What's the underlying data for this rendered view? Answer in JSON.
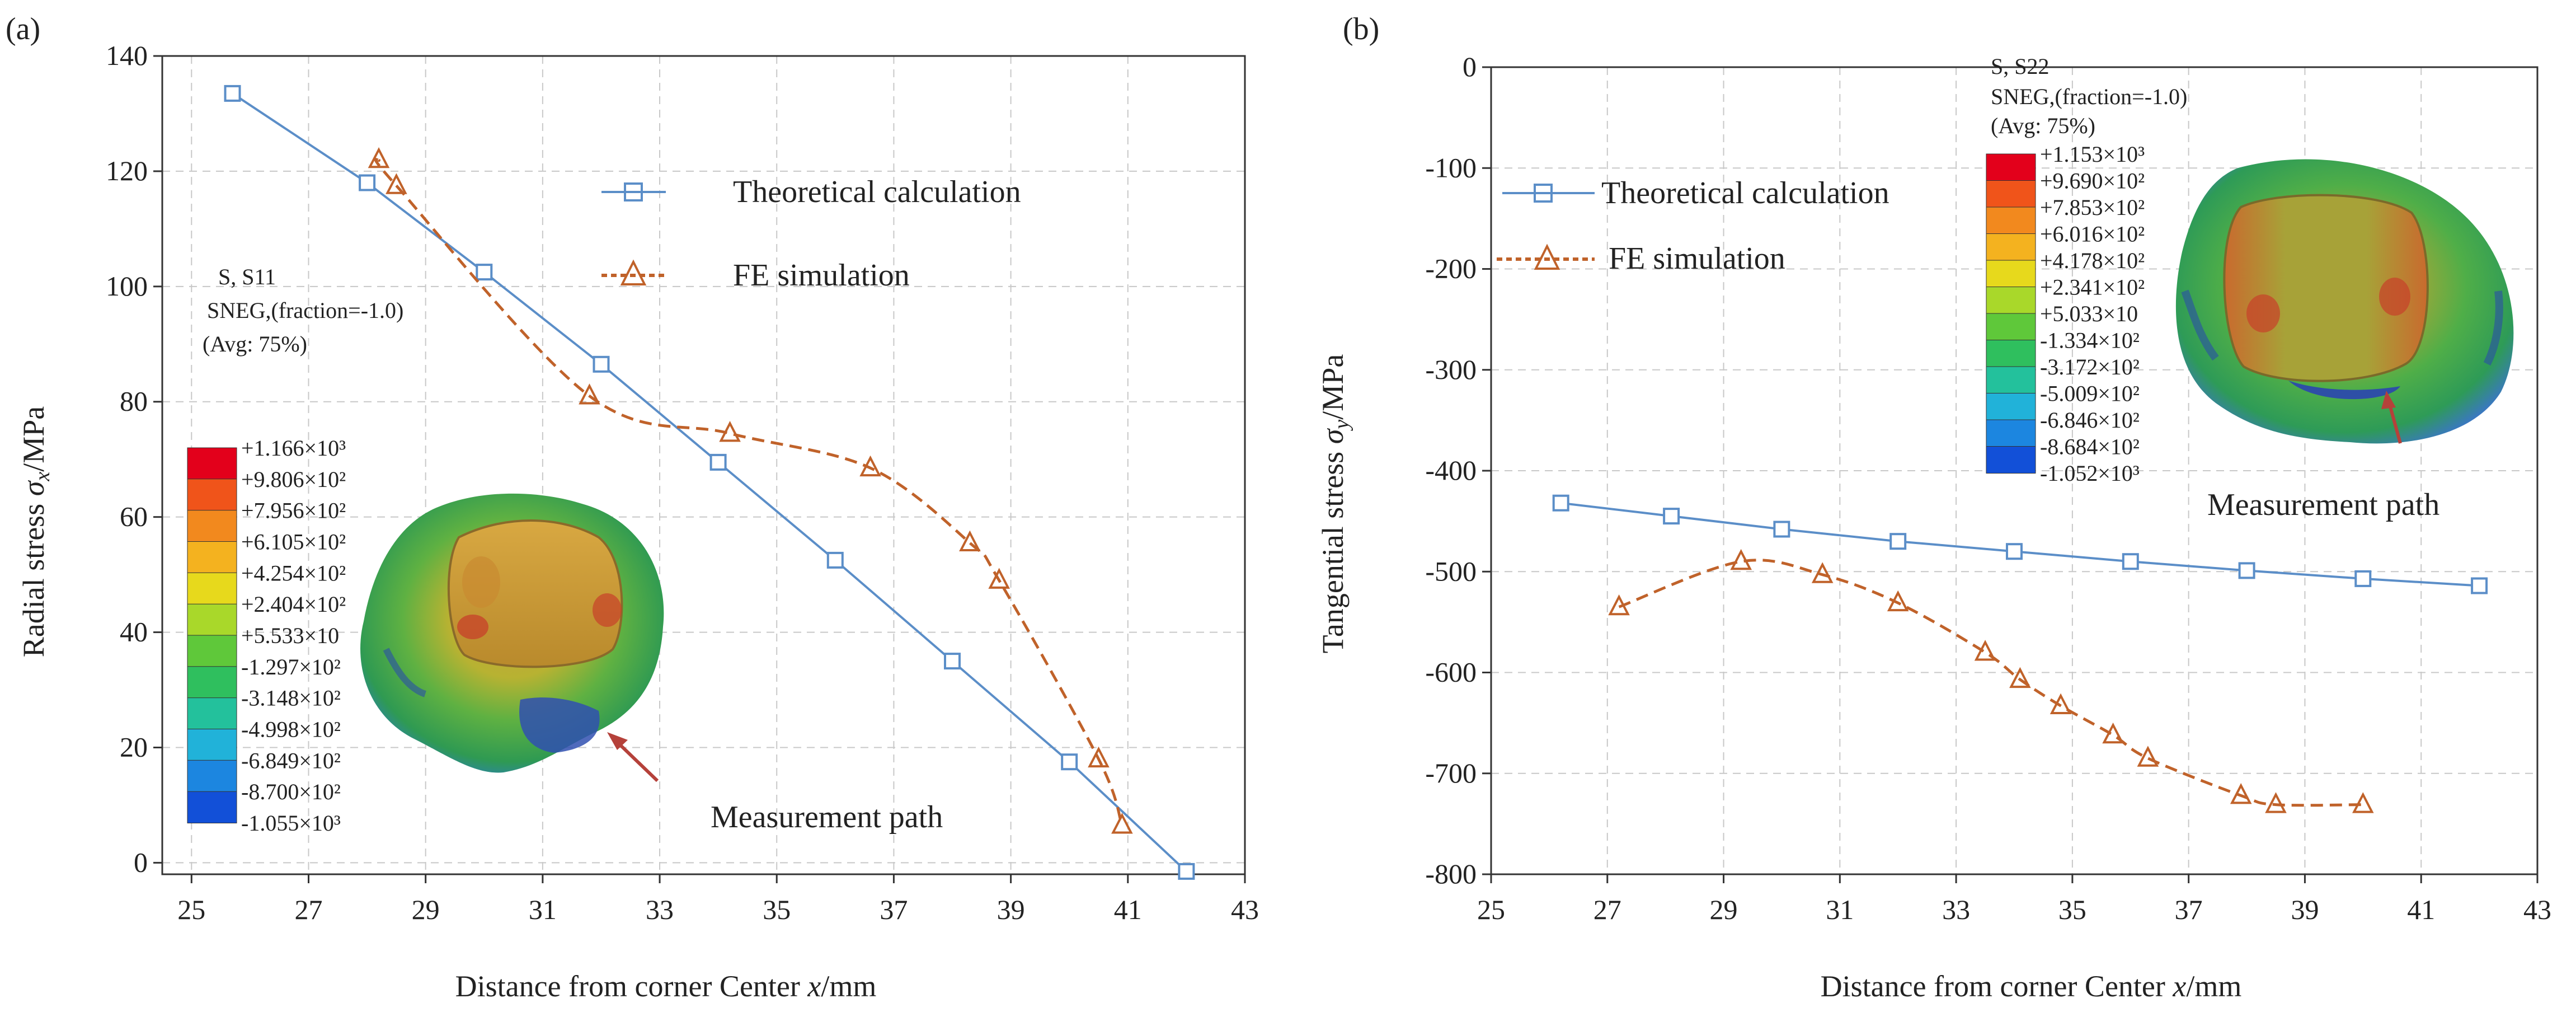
{
  "colors": {
    "theory": "#5b8ec8",
    "fe": "#c0622a",
    "grid": "#c8c8c8",
    "arrow": "#b5413a"
  },
  "chart_data": [
    {
      "panel_label": "(a)",
      "type": "line",
      "xlabel_pre": "Distance from corner Center ",
      "xlabel_var": "x",
      "xlabel_post": "/mm",
      "ylabel_pre": "Radial stress  ",
      "ylabel_var": "σ",
      "ylabel_sub": "x",
      "ylabel_post": "/MPa",
      "xlim": [
        24.5,
        43
      ],
      "ylim": [
        -2,
        140
      ],
      "xticks": [
        25,
        27,
        29,
        31,
        33,
        35,
        37,
        39,
        41,
        43
      ],
      "yticks": [
        0,
        20,
        40,
        60,
        80,
        100,
        120,
        140
      ],
      "series": [
        {
          "name": "Theoretical calculation",
          "style": "theory",
          "x": [
            25.7,
            28.0,
            30.0,
            32.0,
            34.0,
            36.0,
            38.0,
            40.0,
            42.0
          ],
          "y": [
            133.5,
            118,
            102.5,
            86.5,
            69.5,
            52.5,
            35,
            17.5,
            -1.5
          ]
        },
        {
          "name": "FE simulation",
          "style": "fe",
          "x": [
            28.2,
            28.5,
            31.8,
            34.2,
            36.6,
            38.3,
            38.8,
            40.5,
            40.9
          ],
          "y": [
            122,
            117.5,
            81,
            74.5,
            68.5,
            55.5,
            49,
            18,
            6.5
          ]
        }
      ],
      "legend": [
        "Theoretical calculation",
        "FE simulation"
      ],
      "contour": {
        "title": "S, S11",
        "subtitle": "SNEG,(fraction=-1.0)",
        "avg": "(Avg: 75%)",
        "levels": [
          "+1.166×10³",
          "+9.806×10²",
          "+7.956×10²",
          "+6.105×10²",
          "+4.254×10²",
          "+2.404×10²",
          "+5.533×10",
          "-1.297×10²",
          "-3.148×10²",
          "-4.998×10²",
          "-6.849×10²",
          "-8.700×10²",
          "-1.055×10³"
        ]
      },
      "annotation": "Measurement path"
    },
    {
      "panel_label": "(b)",
      "type": "line",
      "xlabel_pre": "Distance from corner Center ",
      "xlabel_var": "x",
      "xlabel_post": "/mm",
      "ylabel_pre": "Tangential stress  ",
      "ylabel_var": "σ",
      "ylabel_sub": "y",
      "ylabel_post": "/MPa",
      "xlim": [
        25,
        43
      ],
      "ylim": [
        -800,
        0
      ],
      "xticks": [
        25,
        27,
        29,
        31,
        33,
        35,
        37,
        39,
        41,
        43
      ],
      "yticks": [
        0,
        -100,
        -200,
        -300,
        -400,
        -500,
        -600,
        -700,
        -800
      ],
      "series": [
        {
          "name": "Theoretical calculation",
          "style": "theory",
          "x": [
            26.2,
            28.1,
            30.0,
            32.0,
            34.0,
            36.0,
            38.0,
            40.0,
            42.0
          ],
          "y": [
            -432,
            -445,
            -458,
            -470,
            -480,
            -490,
            -499,
            -507,
            -514
          ]
        },
        {
          "name": "FE simulation",
          "style": "fe",
          "x": [
            27.2,
            29.3,
            30.7,
            32.0,
            33.5,
            34.1,
            34.8,
            35.7,
            36.3,
            37.9,
            38.5,
            40.0
          ],
          "y": [
            -535,
            -490,
            -503,
            -531,
            -580,
            -607,
            -633,
            -662,
            -685,
            -722,
            -731,
            -731
          ]
        }
      ],
      "legend": [
        "Theoretical calculation",
        "FE simulation"
      ],
      "contour": {
        "title": "S, S22",
        "subtitle": "SNEG,(fraction=-1.0)",
        "avg": "(Avg: 75%)",
        "levels": [
          "+1.153×10³",
          "+9.690×10²",
          "+7.853×10²",
          "+6.016×10²",
          "+4.178×10²",
          "+2.341×10²",
          "+5.033×10",
          "-1.334×10²",
          "-3.172×10²",
          "-5.009×10²",
          "-6.846×10²",
          "-8.684×10²",
          "-1.052×10³"
        ]
      },
      "annotation": "Measurement path"
    }
  ]
}
